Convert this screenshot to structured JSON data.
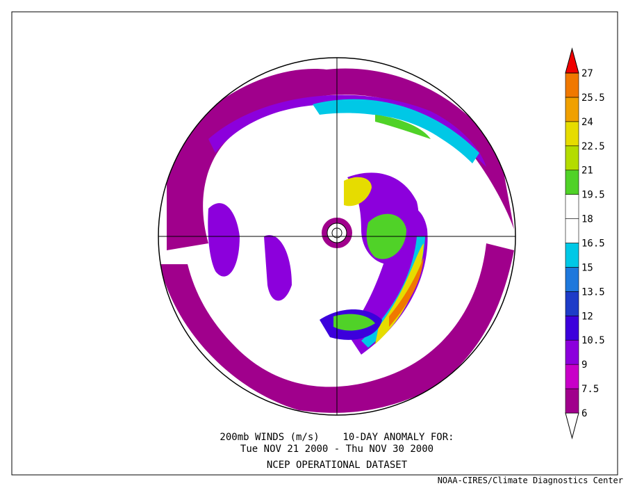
{
  "caption": {
    "line1": "200mb WINDS (m/s)    10-DAY ANOMALY FOR:",
    "line2": "Tue NOV 21 2000 - Thu NOV 30 2000",
    "line3": "NCEP OPERATIONAL DATASET"
  },
  "footer": "NOAA-CIRES/Climate Diagnostics Center",
  "colorbar": {
    "levels": [
      6,
      7.5,
      9,
      10.5,
      12,
      13.5,
      15,
      16.5,
      18,
      19.5,
      21,
      22.5,
      24,
      25.5,
      27
    ],
    "colors": [
      "#ffffff",
      "#a0008c",
      "#c800c8",
      "#8c00dc",
      "#3c00dc",
      "#1e3cc8",
      "#1e78dc",
      "#00c8e6",
      "#ffffff",
      "#ffffff",
      "#50d228",
      "#b4dc00",
      "#e6dc00",
      "#f0a000",
      "#f07800",
      "#f00000"
    ]
  }
}
